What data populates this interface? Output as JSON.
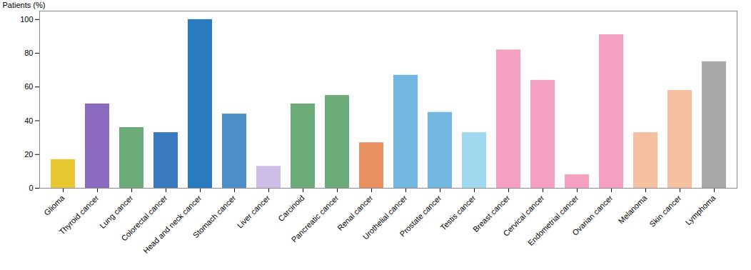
{
  "chart_data": {
    "type": "bar",
    "categories": [
      "Glioma",
      "Thyroid cancer",
      "Lung cancer",
      "Colorectal cancer",
      "Head and neck cancer",
      "Stomach cancer",
      "Liver cancer",
      "Carcinoid",
      "Pancreatic cancer",
      "Renal cancer",
      "Urothelial cancer",
      "Prostate cancer",
      "Testis cancer",
      "Breast cancer",
      "Cervical cancer",
      "Endometrial cancer",
      "Ovarian cancer",
      "Melanoma",
      "Skin cancer",
      "Lymphoma"
    ],
    "values": [
      17,
      50,
      36,
      33,
      100,
      44,
      13,
      50,
      55,
      27,
      67,
      45,
      33,
      82,
      64,
      8,
      91,
      33,
      58,
      75
    ],
    "colors": [
      "#e8c832",
      "#8b6bbf",
      "#6aab78",
      "#3a7abf",
      "#2a7abf",
      "#4d90c8",
      "#ccc0e8",
      "#6aab78",
      "#6aab78",
      "#e89060",
      "#72b8e0",
      "#72b8e0",
      "#a0d8f0",
      "#f4a0c0",
      "#f4a0c0",
      "#f4a0c0",
      "#f4a0c0",
      "#f4c0a0",
      "#f4c0a0",
      "#a8a8a8"
    ],
    "ylabel": "Patients (%)",
    "ylim": [
      0,
      105
    ],
    "yticks": [
      0,
      20,
      40,
      60,
      80,
      100
    ],
    "grid": false
  }
}
